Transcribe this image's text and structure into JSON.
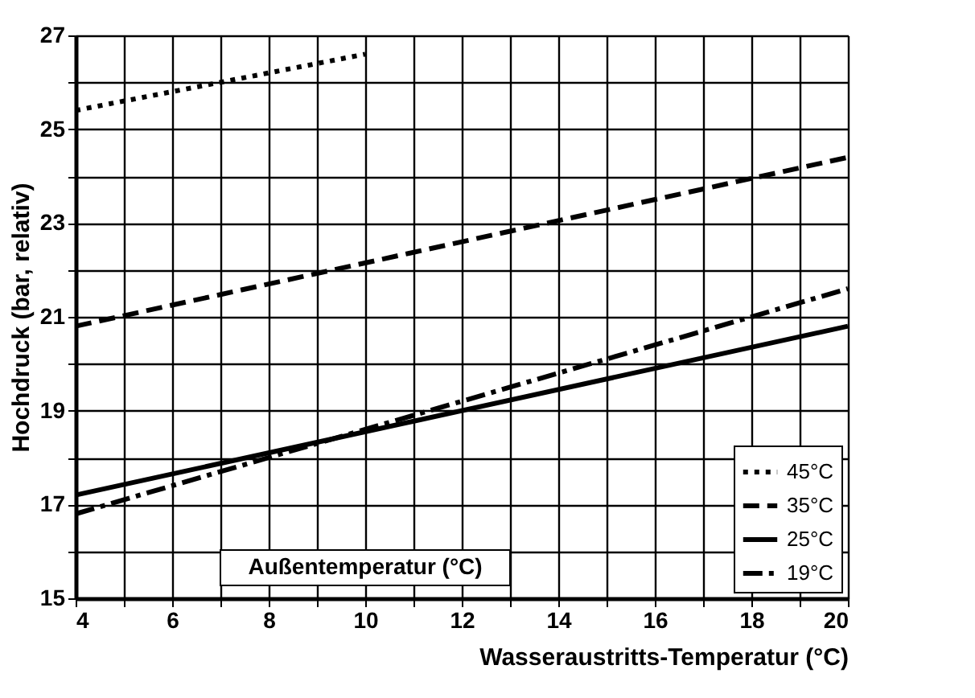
{
  "chart_data": {
    "type": "line",
    "xlabel": "Wasseraustritts-Temperatur (°C)",
    "ylabel": "Hochdruck (bar, relativ)",
    "legend_title": "Außentemperatur (°C)",
    "xlim": [
      4,
      20
    ],
    "ylim": [
      15,
      27
    ],
    "xticks": [
      4,
      {
        "value": 5,
        "label": null
      },
      6,
      {
        "value": 7,
        "label": null
      },
      8,
      {
        "value": 9,
        "label": null
      },
      10,
      {
        "value": 11,
        "label": null
      },
      12,
      {
        "value": 13,
        "label": null
      },
      14,
      {
        "value": 15,
        "label": null
      },
      16,
      {
        "value": 17,
        "label": null
      },
      18,
      {
        "value": 19,
        "label": null
      },
      20
    ],
    "yticks": [
      15,
      {
        "value": 16,
        "label": null
      },
      17,
      {
        "value": 18,
        "label": null
      },
      19,
      {
        "value": 20,
        "label": null
      },
      21,
      {
        "value": 22,
        "label": null
      },
      23,
      {
        "value": 24,
        "label": null
      },
      25,
      {
        "value": 26,
        "label": null
      },
      27
    ],
    "grid": true,
    "legend": "bottom right",
    "series": [
      {
        "name": "45°C",
        "color": "#000000",
        "line_style": "dotted",
        "x": [
          4,
          10
        ],
        "values": [
          25.4,
          26.6
        ]
      },
      {
        "name": "35°C",
        "color": "#000000",
        "line_style": "dashed",
        "x": [
          4,
          20
        ],
        "values": [
          20.8,
          24.4
        ]
      },
      {
        "name": "25°C",
        "color": "#000000",
        "line_style": "solid",
        "x": [
          4,
          20
        ],
        "values": [
          17.2,
          20.8
        ]
      },
      {
        "name": "19°C",
        "color": "#000000",
        "line_style": "dashdot",
        "x": [
          4,
          20
        ],
        "values": [
          16.8,
          21.6
        ]
      }
    ]
  }
}
